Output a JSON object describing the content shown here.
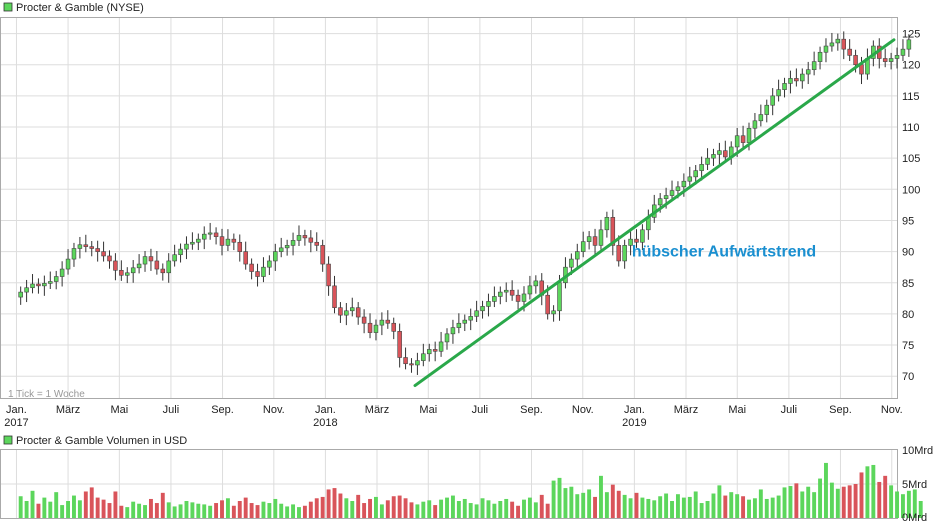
{
  "colors": {
    "up": "#5cd65c",
    "down": "#d9545a",
    "wick": "#333333",
    "trend": "#2aa84a",
    "annotation": "#1a8fd0",
    "grid": "#dddddd",
    "frame": "#aaaaaa",
    "legend_box": "#5cd65c"
  },
  "chart_data": [
    {
      "type": "candlestick",
      "title": "Procter & Gamble (NYSE)",
      "note": "1 Tick = 1 Woche",
      "annotation": "hübscher Aufwärtstrend",
      "x_range": [
        2016.95,
        2019.85
      ],
      "ylim": [
        66.5,
        127.5
      ],
      "y_ticks": [
        70,
        75,
        80,
        85,
        90,
        95,
        100,
        105,
        110,
        115,
        120,
        125
      ],
      "x_ticks": [
        {
          "t": 2017.0,
          "label": "Jan.",
          "year": "2017"
        },
        {
          "t": 2017.167,
          "label": "März",
          "year": ""
        },
        {
          "t": 2017.333,
          "label": "Mai",
          "year": ""
        },
        {
          "t": 2017.5,
          "label": "Juli",
          "year": ""
        },
        {
          "t": 2017.667,
          "label": "Sep.",
          "year": ""
        },
        {
          "t": 2017.833,
          "label": "Nov.",
          "year": ""
        },
        {
          "t": 2018.0,
          "label": "Jan.",
          "year": "2018"
        },
        {
          "t": 2018.167,
          "label": "März",
          "year": ""
        },
        {
          "t": 2018.333,
          "label": "Mai",
          "year": ""
        },
        {
          "t": 2018.5,
          "label": "Juli",
          "year": ""
        },
        {
          "t": 2018.667,
          "label": "Sep.",
          "year": ""
        },
        {
          "t": 2018.833,
          "label": "Nov.",
          "year": ""
        },
        {
          "t": 2019.0,
          "label": "Jan.",
          "year": "2019"
        },
        {
          "t": 2019.167,
          "label": "März",
          "year": ""
        },
        {
          "t": 2019.333,
          "label": "Mai",
          "year": ""
        },
        {
          "t": 2019.5,
          "label": "Juli",
          "year": ""
        },
        {
          "t": 2019.667,
          "label": "Sep.",
          "year": ""
        },
        {
          "t": 2019.833,
          "label": "Nov.",
          "year": ""
        }
      ],
      "start_week": "2017-01-06",
      "closes": [
        83.5,
        84.2,
        84.8,
        84.5,
        84.9,
        85.2,
        86.0,
        87.2,
        88.8,
        90.5,
        91.1,
        90.8,
        90.5,
        90.0,
        89.3,
        88.5,
        87.0,
        86.2,
        86.6,
        87.4,
        88.0,
        89.2,
        88.5,
        87.2,
        86.6,
        88.5,
        89.5,
        90.4,
        91.2,
        91.5,
        92.0,
        92.8,
        93.0,
        92.4,
        91.0,
        92.0,
        91.5,
        90.0,
        88.0,
        86.8,
        86.0,
        87.5,
        88.5,
        90.0,
        90.6,
        91.0,
        91.8,
        92.6,
        92.2,
        91.5,
        91.0,
        88.0,
        84.5,
        81.0,
        79.8,
        80.5,
        81.0,
        79.5,
        78.5,
        77.0,
        78.2,
        79.0,
        78.5,
        77.2,
        73.0,
        72.0,
        71.8,
        72.5,
        73.6,
        74.3,
        74.0,
        75.5,
        76.8,
        77.8,
        78.5,
        79.0,
        79.6,
        80.5,
        81.2,
        82.0,
        82.8,
        83.5,
        83.8,
        83.0,
        82.0,
        83.2,
        84.5,
        85.3,
        83.0,
        80.0,
        80.5,
        85.0,
        87.5,
        88.8,
        90.0,
        91.6,
        92.4,
        91.0,
        93.5,
        95.5,
        91.0,
        88.5,
        91.0,
        92.0,
        91.5,
        93.5,
        95.5,
        97.5,
        98.5,
        99.0,
        99.8,
        100.4,
        101.3,
        102.0,
        103.0,
        104.0,
        105.0,
        105.6,
        106.2,
        105.2,
        106.8,
        108.6,
        107.5,
        109.8,
        111.0,
        112.0,
        113.5,
        115.0,
        116.0,
        117.0,
        117.8,
        117.4,
        118.5,
        119.2,
        120.5,
        122.0,
        123.0,
        123.5,
        124.1,
        122.5,
        121.5,
        120.0,
        118.5,
        121.0,
        123.0,
        121.0,
        120.5,
        121.0,
        121.5,
        122.5,
        124.0
      ],
      "trendline": [
        [
          2018.29,
          68.5
        ],
        [
          2019.84,
          124.0
        ]
      ],
      "annotation_pos": [
        2019.29,
        89.2
      ]
    },
    {
      "type": "bar",
      "title": "Procter & Gamble Volumen in USD",
      "y_ticks": [
        "0Mrd",
        "5Mrd",
        "10Mrd"
      ],
      "ylim": [
        0,
        10
      ],
      "volumes": [
        3.2,
        2.5,
        4.0,
        2.1,
        3.0,
        2.4,
        3.8,
        1.9,
        2.5,
        3.3,
        2.6,
        3.9,
        4.5,
        3.0,
        2.7,
        2.2,
        3.9,
        1.8,
        1.6,
        2.4,
        2.1,
        1.9,
        2.8,
        2.2,
        3.7,
        2.3,
        1.7,
        2.0,
        2.5,
        2.3,
        2.1,
        2.0,
        1.8,
        2.2,
        2.6,
        2.9,
        1.8,
        2.5,
        3.0,
        2.2,
        1.9,
        2.4,
        2.2,
        2.8,
        2.1,
        1.7,
        2.0,
        1.6,
        1.8,
        2.4,
        2.9,
        3.1,
        4.2,
        4.4,
        3.6,
        2.9,
        2.5,
        3.4,
        2.2,
        2.8,
        3.1,
        2.0,
        2.6,
        3.2,
        3.3,
        2.9,
        2.3,
        2.0,
        2.4,
        2.6,
        1.9,
        2.7,
        3.0,
        3.3,
        2.5,
        2.8,
        2.2,
        2.0,
        2.9,
        2.6,
        2.1,
        2.5,
        2.8,
        2.4,
        1.8,
        2.7,
        3.0,
        2.3,
        3.4,
        2.1,
        5.5,
        5.9,
        4.4,
        4.6,
        3.5,
        3.7,
        4.2,
        3.1,
        6.2,
        3.8,
        4.9,
        4.0,
        3.4,
        2.9,
        3.7,
        3.0,
        2.8,
        2.6,
        3.2,
        3.6,
        2.5,
        3.5,
        3.0,
        3.1,
        3.9,
        2.2,
        2.5,
        3.6,
        4.8,
        3.3,
        3.8,
        3.5,
        3.2,
        2.7,
        2.9,
        4.2,
        2.8,
        3.0,
        3.3,
        4.5,
        4.7,
        5.1,
        3.9,
        4.6,
        3.8,
        5.8,
        8.1,
        5.2,
        4.3,
        4.6,
        4.8,
        5.0,
        6.7,
        7.6,
        7.8,
        5.3,
        6.2,
        4.8,
        3.9,
        3.5,
        4.0,
        4.2,
        2.5
      ]
    }
  ]
}
